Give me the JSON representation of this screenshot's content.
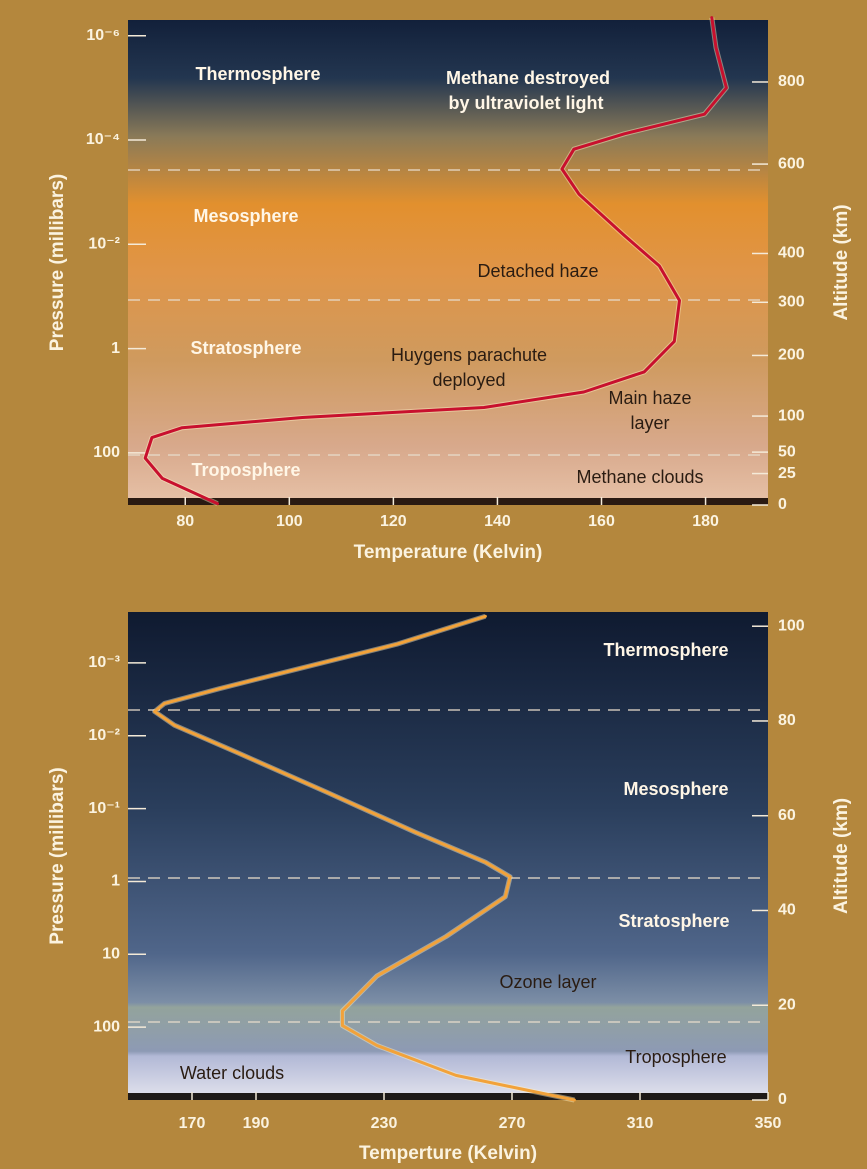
{
  "chart_data": [
    {
      "type": "line",
      "xlabel": "Temperature (Kelvin)",
      "ylabel": "Pressure (millibars)",
      "y2label": "Altitude (km)",
      "xlim": [
        69,
        192
      ],
      "xticks": [
        80,
        100,
        120,
        140,
        160,
        180
      ],
      "yscale": "log",
      "ylim": [
        1000,
        5e-07
      ],
      "yticks": [
        {
          "value": 1e-06,
          "label": "10⁻⁶"
        },
        {
          "value": 0.0001,
          "label": "10⁻⁴"
        },
        {
          "value": 0.01,
          "label": "10⁻²"
        },
        1,
        100
      ],
      "y2scale": "power",
      "y2exponent": 0.75,
      "y2lim": [
        0,
        960
      ],
      "y2ticks": [
        0,
        25,
        50,
        100,
        200,
        300,
        400,
        600,
        800
      ],
      "series": [
        {
          "color": "#c8102e",
          "axis": "y",
          "x": [
            181.2,
            182,
            184,
            179.8,
            164.4,
            154.7,
            152.4,
            155.7,
            164.4,
            171.1,
            175,
            174,
            168.2,
            156.6,
            137.4,
            102.5,
            79.4,
            73.6,
            72.3,
            75.6,
            86.2
          ],
          "values": [
            4.5e-07,
            1.7e-06,
            1e-05,
            3.2e-05,
            7.6e-05,
            0.00015,
            0.00036,
            0.0011,
            0.0068,
            0.026,
            0.12,
            0.73,
            2.8,
            6.8,
            13.5,
            21,
            33,
            51,
            126,
            309,
            940
          ]
        }
      ],
      "annotations": [
        "Thermosphere",
        "Methane destroyed",
        "by ultraviolet light",
        "Mesosphere",
        "Detached haze",
        "Stratosphere",
        "Huygens parachute",
        "deployed",
        "Main haze",
        "layer",
        "Troposphere",
        "Methane clouds"
      ]
    },
    {
      "type": "line",
      "xlabel": "Temperture (Kelvin)",
      "ylabel": "Pressure (millibars)",
      "y2label": "Altitude (km)",
      "xlim": [
        150,
        350
      ],
      "xticks": [
        170,
        190,
        230,
        270,
        310,
        350
      ],
      "yscale": "log",
      "ylim": [
        1000,
        0.0002
      ],
      "yticks": [
        {
          "value": 0.001,
          "label": "10⁻³"
        },
        {
          "value": 0.01,
          "label": "10⁻²"
        },
        {
          "value": 0.1,
          "label": "10⁻¹"
        },
        1,
        10,
        100
      ],
      "y2lim": [
        0,
        103
      ],
      "y2ticks": [
        0,
        20,
        40,
        60,
        80,
        100
      ],
      "series": [
        {
          "color": "#f2a23a",
          "axis": "y2",
          "x": [
            261.7,
            234,
            203.1,
            178.4,
            161.4,
            158.3,
            164.5,
            184.6,
            212.3,
            239.8,
            261.7,
            269.4,
            267.9,
            249.4,
            227.8,
            217,
            217,
            227.8,
            252.5,
            289.5
          ],
          "values": [
            102.1,
            96.2,
            91,
            86.8,
            83.7,
            82,
            79.1,
            73.2,
            64.9,
            56.5,
            50.2,
            47.1,
            42.9,
            34.5,
            26.2,
            18.8,
            15.7,
            11.5,
            5.2,
            0
          ]
        }
      ],
      "annotations": [
        "Thermosphere",
        "Mesosphere",
        "Stratosphere",
        "Ozone layer",
        "Troposphere",
        "Water clouds"
      ]
    }
  ]
}
